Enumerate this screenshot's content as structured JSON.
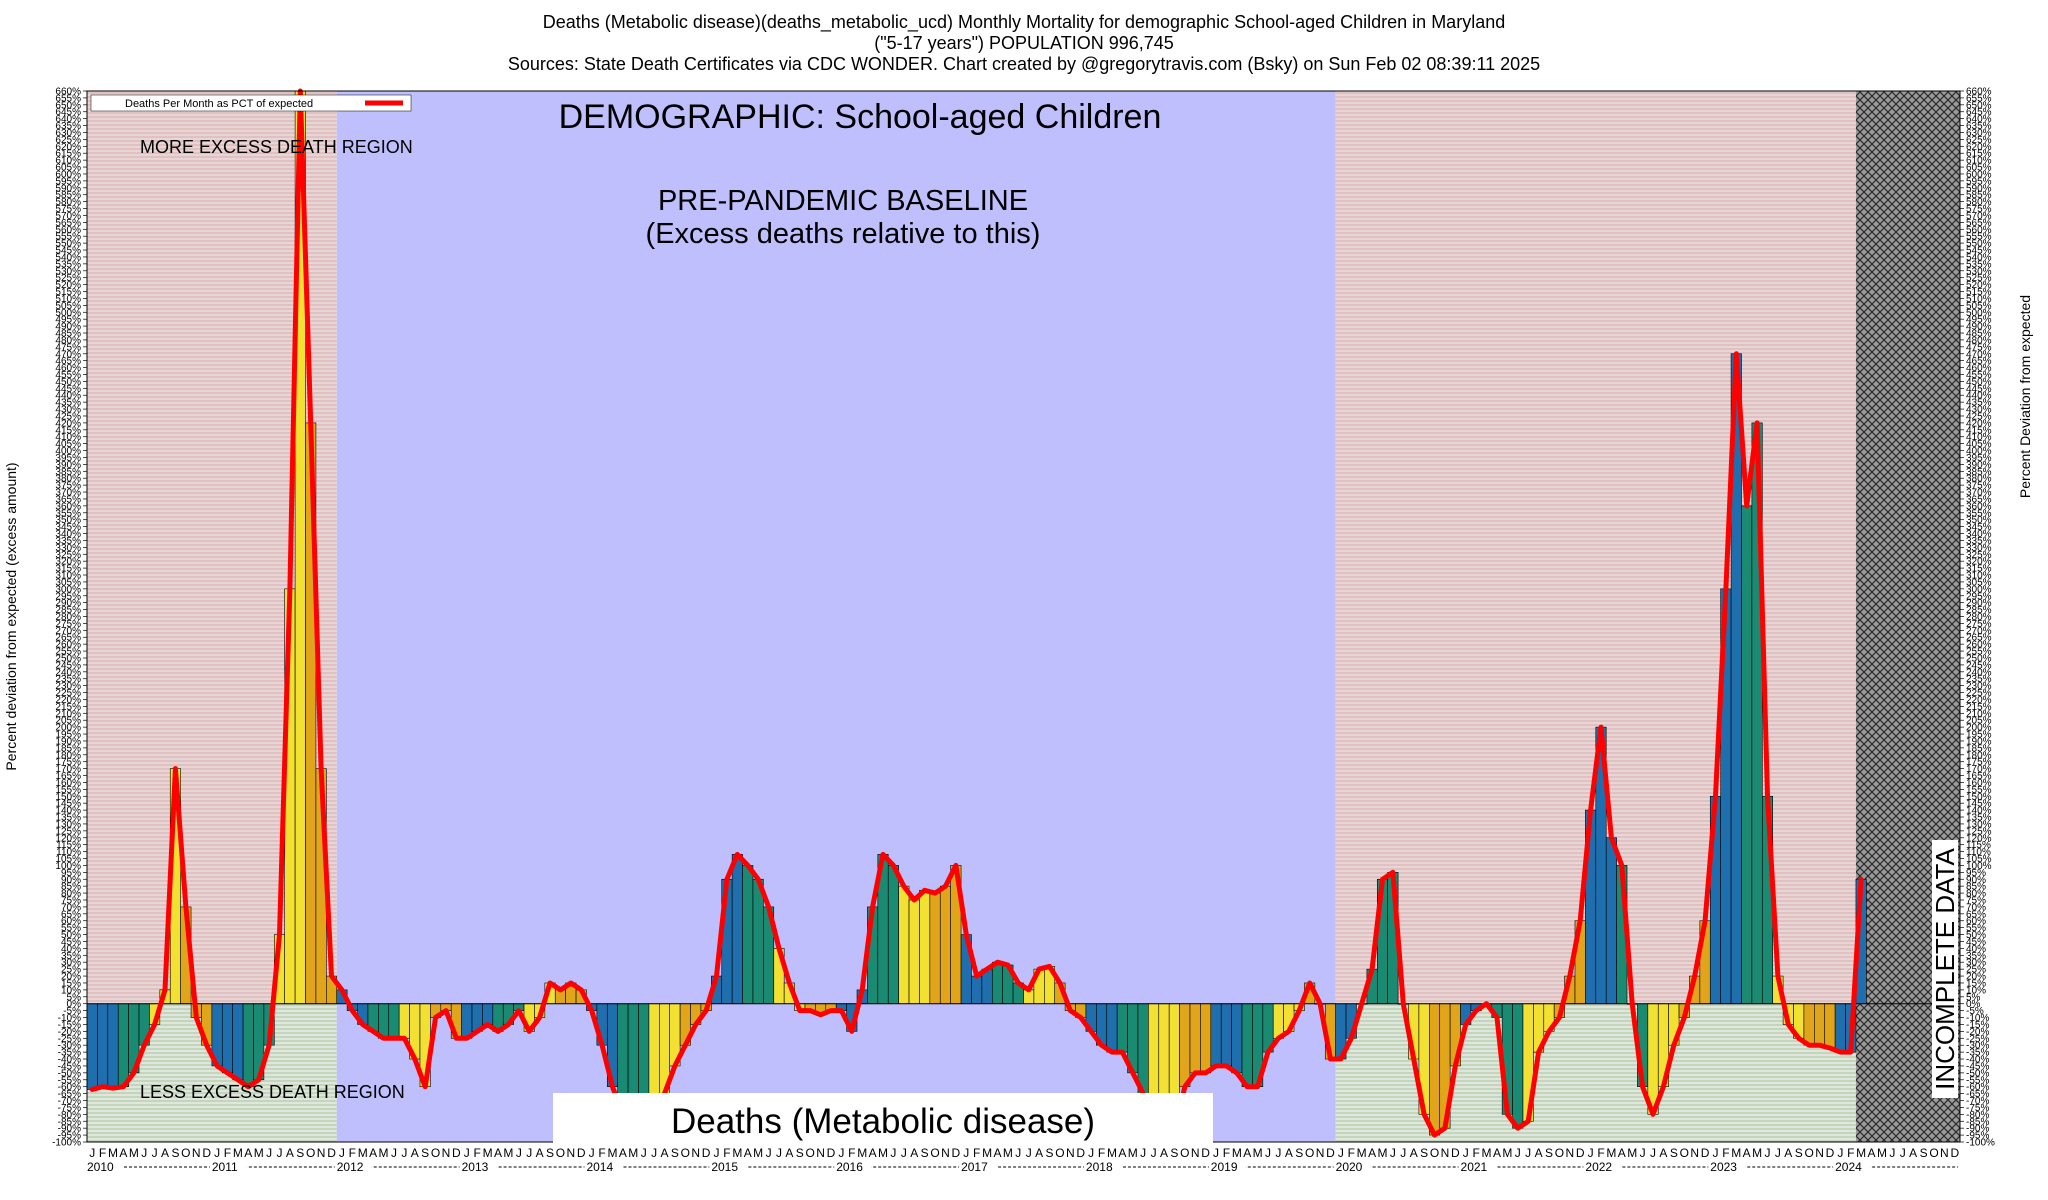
{
  "header": {
    "line1": "Deaths (Metabolic disease)(deaths_metabolic_ucd) Monthly Mortality for demographic School-aged Children in Maryland",
    "line2": "(\"5-17 years\") POPULATION 996,745",
    "line3": "Sources: State Death Certificates via CDC WONDER.              Chart created by @gregorytravis.com (Bsky) on Sun Feb 02 08:39:11 2025"
  },
  "chart_data": {
    "type": "bar",
    "title": "DEMOGRAPHIC: School-aged Children",
    "subtitle": "Deaths (Metabolic disease)",
    "ylabel": "Percent deviation from expected (excess amount)",
    "ylabel_right": "Percent Deviation from expected",
    "ylim": [
      -100,
      660
    ],
    "ytick_step": 5,
    "ytick_suffix": "%",
    "grid": false,
    "legend": {
      "label": "Deaths Per Month as PCT of expected",
      "placement": "top-left",
      "color": "#ff0000"
    },
    "annotations": {
      "more_excess": "MORE EXCESS DEATH REGION",
      "less_excess": "LESS EXCESS DEATH REGION",
      "baseline_title": "PRE-PANDEMIC BASELINE",
      "baseline_sub": "(Excess deaths relative to this)",
      "incomplete": "INCOMPLETE DATA"
    },
    "regions": {
      "baseline_start": "2012-01",
      "baseline_end": "2019-12",
      "incomplete_start": "2024-03"
    },
    "start": "2010-01",
    "month_letters": [
      "J",
      "F",
      "M",
      "A",
      "M",
      "J",
      "J",
      "A",
      "S",
      "O",
      "N",
      "D"
    ],
    "years": [
      "2010",
      "2011",
      "2012",
      "2013",
      "2014",
      "2015",
      "2016",
      "2017",
      "2018",
      "2019",
      "2020",
      "2021",
      "2022",
      "2023",
      "2024"
    ],
    "series": [
      {
        "name": "Deaths Per Month as PCT of expected",
        "values": [
          -62,
          -60,
          -61,
          -60,
          -50,
          -30,
          -15,
          10,
          170,
          70,
          -10,
          -30,
          -45,
          -50,
          -55,
          -60,
          -55,
          -30,
          50,
          300,
          660,
          420,
          170,
          20,
          10,
          -5,
          -15,
          -20,
          -25,
          -25,
          -25,
          -40,
          -60,
          -10,
          -5,
          -25,
          -25,
          -20,
          -15,
          -20,
          -15,
          -5,
          -20,
          -10,
          15,
          10,
          15,
          10,
          -5,
          -30,
          -60,
          -80,
          -95,
          -95,
          -90,
          -65,
          -45,
          -30,
          -15,
          -5,
          20,
          90,
          108,
          100,
          90,
          70,
          40,
          15,
          -5,
          -5,
          -8,
          -5,
          -5,
          -20,
          10,
          70,
          108,
          100,
          85,
          75,
          82,
          80,
          85,
          100,
          50,
          20,
          25,
          30,
          28,
          15,
          10,
          25,
          27,
          15,
          -5,
          -10,
          -20,
          -30,
          -35,
          -35,
          -50,
          -65,
          -90,
          -100,
          -95,
          -60,
          -50,
          -50,
          -45,
          -45,
          -50,
          -60,
          -60,
          -35,
          -25,
          -20,
          -5,
          15,
          0,
          -40,
          -40,
          -25,
          0,
          25,
          90,
          95,
          0,
          -40,
          -80,
          -95,
          -90,
          -45,
          -15,
          -5,
          0,
          -10,
          -80,
          -90,
          -85,
          -35,
          -20,
          -10,
          20,
          60,
          140,
          200,
          120,
          100,
          0,
          -60,
          -80,
          -60,
          -30,
          -10,
          20,
          60,
          150,
          300,
          470,
          360,
          420,
          150,
          20,
          -15,
          -25,
          -30,
          -30,
          -32,
          -35,
          -35,
          90
        ]
      }
    ]
  }
}
